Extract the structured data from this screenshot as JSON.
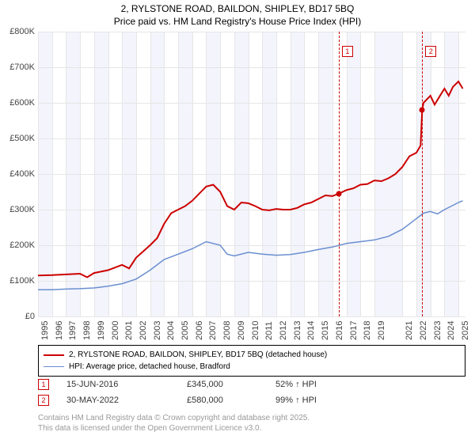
{
  "title_line1": "2, RYLSTONE ROAD, BAILDON, SHIPLEY, BD17 5BQ",
  "title_line2": "Price paid vs. HM Land Registry's House Price Index (HPI)",
  "chart": {
    "type": "line",
    "xlim": [
      1995,
      2025.5
    ],
    "ylim": [
      0,
      800000
    ],
    "ytick_step": 100000,
    "yticks": [
      "£0",
      "£100K",
      "£200K",
      "£300K",
      "£400K",
      "£500K",
      "£600K",
      "£700K",
      "£800K"
    ],
    "xticks": [
      1995,
      1996,
      1997,
      1998,
      1999,
      2000,
      2001,
      2002,
      2003,
      2004,
      2005,
      2006,
      2007,
      2008,
      2009,
      2010,
      2011,
      2012,
      2013,
      2014,
      2015,
      2016,
      2017,
      2018,
      2019,
      2021,
      2022,
      2023,
      2024,
      2025
    ],
    "band_colors": [
      "#f3f4fc",
      "#ffffff"
    ],
    "grid_color": "#e6e6e6",
    "series": [
      {
        "name": "price_paid",
        "color": "#cc0000",
        "width": 2,
        "data": [
          [
            1995,
            115000
          ],
          [
            1996,
            116000
          ],
          [
            1997,
            118000
          ],
          [
            1998,
            120000
          ],
          [
            1998.5,
            110000
          ],
          [
            1999,
            122000
          ],
          [
            2000,
            130000
          ],
          [
            2001,
            145000
          ],
          [
            2001.5,
            135000
          ],
          [
            2002,
            165000
          ],
          [
            2003,
            200000
          ],
          [
            2003.5,
            220000
          ],
          [
            2004,
            260000
          ],
          [
            2004.5,
            290000
          ],
          [
            2005,
            300000
          ],
          [
            2005.5,
            310000
          ],
          [
            2006,
            325000
          ],
          [
            2006.5,
            345000
          ],
          [
            2007,
            365000
          ],
          [
            2007.5,
            370000
          ],
          [
            2008,
            350000
          ],
          [
            2008.5,
            310000
          ],
          [
            2009,
            300000
          ],
          [
            2009.5,
            320000
          ],
          [
            2010,
            318000
          ],
          [
            2010.5,
            310000
          ],
          [
            2011,
            300000
          ],
          [
            2011.5,
            298000
          ],
          [
            2012,
            302000
          ],
          [
            2012.5,
            300000
          ],
          [
            2013,
            300000
          ],
          [
            2013.5,
            305000
          ],
          [
            2014,
            315000
          ],
          [
            2014.5,
            320000
          ],
          [
            2015,
            330000
          ],
          [
            2015.5,
            340000
          ],
          [
            2016,
            338000
          ],
          [
            2016.46,
            345000
          ],
          [
            2017,
            355000
          ],
          [
            2017.5,
            360000
          ],
          [
            2018,
            370000
          ],
          [
            2018.5,
            372000
          ],
          [
            2019,
            382000
          ],
          [
            2019.5,
            380000
          ],
          [
            2020,
            388000
          ],
          [
            2020.5,
            400000
          ],
          [
            2021,
            420000
          ],
          [
            2021.5,
            450000
          ],
          [
            2022,
            460000
          ],
          [
            2022.3,
            480000
          ],
          [
            2022.41,
            580000
          ],
          [
            2022.5,
            600000
          ],
          [
            2023,
            620000
          ],
          [
            2023.3,
            595000
          ],
          [
            2023.6,
            615000
          ],
          [
            2024,
            640000
          ],
          [
            2024.3,
            620000
          ],
          [
            2024.6,
            645000
          ],
          [
            2025,
            660000
          ],
          [
            2025.3,
            640000
          ]
        ]
      },
      {
        "name": "hpi",
        "color": "#6a8fcf",
        "width": 1.5,
        "data": [
          [
            1995,
            75000
          ],
          [
            1996,
            75000
          ],
          [
            1997,
            77000
          ],
          [
            1998,
            78000
          ],
          [
            1999,
            80000
          ],
          [
            2000,
            85000
          ],
          [
            2001,
            92000
          ],
          [
            2002,
            105000
          ],
          [
            2003,
            130000
          ],
          [
            2004,
            160000
          ],
          [
            2005,
            175000
          ],
          [
            2006,
            190000
          ],
          [
            2007,
            210000
          ],
          [
            2008,
            200000
          ],
          [
            2008.5,
            175000
          ],
          [
            2009,
            170000
          ],
          [
            2010,
            180000
          ],
          [
            2011,
            175000
          ],
          [
            2012,
            172000
          ],
          [
            2013,
            174000
          ],
          [
            2014,
            180000
          ],
          [
            2015,
            188000
          ],
          [
            2016,
            195000
          ],
          [
            2017,
            205000
          ],
          [
            2018,
            210000
          ],
          [
            2019,
            215000
          ],
          [
            2020,
            225000
          ],
          [
            2021,
            245000
          ],
          [
            2022,
            275000
          ],
          [
            2022.5,
            290000
          ],
          [
            2023,
            295000
          ],
          [
            2023.5,
            288000
          ],
          [
            2024,
            300000
          ],
          [
            2024.5,
            310000
          ],
          [
            2025,
            320000
          ],
          [
            2025.3,
            325000
          ]
        ]
      }
    ]
  },
  "markers": [
    {
      "n": "1",
      "x": 2016.46,
      "y": 345000,
      "box_top": 18
    },
    {
      "n": "2",
      "x": 2022.41,
      "y": 580000,
      "box_top": 18
    }
  ],
  "legend": [
    {
      "color": "#cc0000",
      "width": 2,
      "text": "2, RYLSTONE ROAD, BAILDON, SHIPLEY, BD17 5BQ (detached house)"
    },
    {
      "color": "#6a8fcf",
      "width": 1.5,
      "text": "HPI: Average price, detached house, Bradford"
    }
  ],
  "events": [
    {
      "n": "1",
      "date": "15-JUN-2016",
      "price": "£345,000",
      "pct": "52% ↑ HPI"
    },
    {
      "n": "2",
      "date": "30-MAY-2022",
      "price": "£580,000",
      "pct": "99% ↑ HPI"
    }
  ],
  "footer_line1": "Contains HM Land Registry data © Crown copyright and database right 2025.",
  "footer_line2": "This data is licensed under the Open Government Licence v3.0."
}
